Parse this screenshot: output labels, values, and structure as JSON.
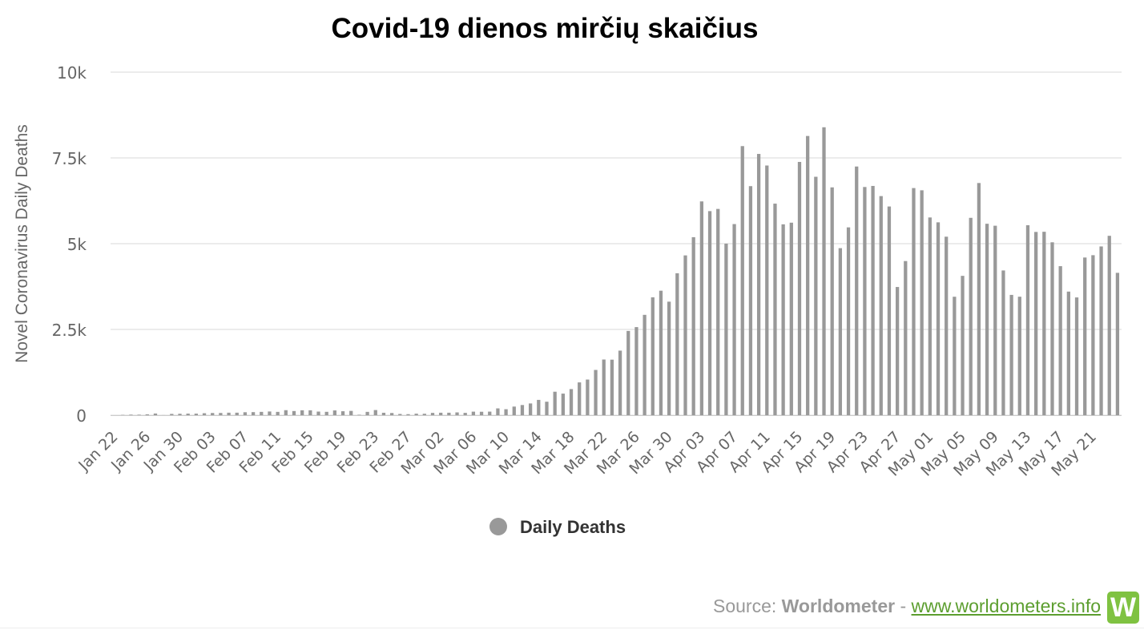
{
  "chart_data": {
    "type": "bar",
    "title": "Covid-19 dienos mirčių skaičius",
    "ylabel": "Novel Coronavirus Daily Deaths",
    "xlabel": "",
    "ylim": [
      0,
      10000
    ],
    "yticks": [
      {
        "value": 0,
        "label": "0"
      },
      {
        "value": 2500,
        "label": "2.5k"
      },
      {
        "value": 5000,
        "label": "5k"
      },
      {
        "value": 7500,
        "label": "7.5k"
      },
      {
        "value": 10000,
        "label": "10k"
      }
    ],
    "xtick_labels": [
      "Jan 22",
      "Jan 26",
      "Jan 30",
      "Feb 03",
      "Feb 07",
      "Feb 11",
      "Feb 15",
      "Feb 19",
      "Feb 23",
      "Feb 27",
      "Mar 02",
      "Mar 06",
      "Mar 10",
      "Mar 14",
      "Mar 18",
      "Mar 22",
      "Mar 26",
      "Mar 30",
      "Apr 03",
      "Apr 07",
      "Apr 11",
      "Apr 15",
      "Apr 19",
      "Apr 23",
      "Apr 27",
      "May 01",
      "May 05",
      "May 09",
      "May 13",
      "May 17",
      "May 21"
    ],
    "grid": true,
    "legend_position": "bottom-center",
    "bar_color": "#999999",
    "categories": [
      "Jan 22",
      "Jan 23",
      "Jan 24",
      "Jan 25",
      "Jan 26",
      "Jan 27",
      "Jan 28",
      "Jan 29",
      "Jan 30",
      "Jan 31",
      "Feb 01",
      "Feb 02",
      "Feb 03",
      "Feb 04",
      "Feb 05",
      "Feb 06",
      "Feb 07",
      "Feb 08",
      "Feb 09",
      "Feb 10",
      "Feb 11",
      "Feb 12",
      "Feb 13",
      "Feb 14",
      "Feb 15",
      "Feb 16",
      "Feb 17",
      "Feb 18",
      "Feb 19",
      "Feb 20",
      "Feb 21",
      "Feb 22",
      "Feb 23",
      "Feb 24",
      "Feb 25",
      "Feb 26",
      "Feb 27",
      "Feb 28",
      "Feb 29",
      "Mar 01",
      "Mar 02",
      "Mar 03",
      "Mar 04",
      "Mar 05",
      "Mar 06",
      "Mar 07",
      "Mar 08",
      "Mar 09",
      "Mar 10",
      "Mar 11",
      "Mar 12",
      "Mar 13",
      "Mar 14",
      "Mar 15",
      "Mar 16",
      "Mar 17",
      "Mar 18",
      "Mar 19",
      "Mar 20",
      "Mar 21",
      "Mar 22",
      "Mar 23",
      "Mar 24",
      "Mar 25",
      "Mar 26",
      "Mar 27",
      "Mar 28",
      "Mar 29",
      "Mar 30",
      "Mar 31",
      "Apr 01",
      "Apr 02",
      "Apr 03",
      "Apr 04",
      "Apr 05",
      "Apr 06",
      "Apr 07",
      "Apr 08",
      "Apr 09",
      "Apr 10",
      "Apr 11",
      "Apr 12",
      "Apr 13",
      "Apr 14",
      "Apr 15",
      "Apr 16",
      "Apr 17",
      "Apr 18",
      "Apr 19",
      "Apr 20",
      "Apr 21",
      "Apr 22",
      "Apr 23",
      "Apr 24",
      "Apr 25",
      "Apr 26",
      "Apr 27",
      "Apr 28",
      "Apr 29",
      "Apr 30",
      "May 01",
      "May 02",
      "May 03",
      "May 04",
      "May 05",
      "May 06",
      "May 07",
      "May 08",
      "May 09",
      "May 10",
      "May 11",
      "May 12",
      "May 13",
      "May 14",
      "May 15",
      "May 16",
      "May 17",
      "May 18",
      "May 19",
      "May 20",
      "May 21",
      "May 22",
      "May 23",
      "May 24"
    ],
    "series": [
      {
        "name": "Daily Deaths",
        "color": "#999999",
        "values": [
          0,
          8,
          16,
          14,
          26,
          49,
          2,
          38,
          42,
          46,
          45,
          57,
          64,
          65,
          73,
          73,
          86,
          89,
          97,
          108,
          97,
          146,
          121,
          143,
          142,
          105,
          98,
          139,
          115,
          125,
          12,
          97,
          150,
          71,
          64,
          36,
          30,
          44,
          42,
          67,
          72,
          72,
          81,
          68,
          103,
          100,
          104,
          198,
          174,
          251,
          296,
          342,
          446,
          393,
          684,
          629,
          761,
          956,
          1039,
          1319,
          1623,
          1619,
          1882,
          2456,
          2568,
          2925,
          3436,
          3629,
          3309,
          4137,
          4658,
          5189,
          6232,
          5949,
          6013,
          5001,
          5571,
          7844,
          6677,
          7616,
          7278,
          6167,
          5564,
          5612,
          7383,
          8139,
          6950,
          8393,
          6641,
          4869,
          5475,
          7249,
          6652,
          6683,
          6387,
          6084,
          3737,
          4493,
          6621,
          6556,
          5764,
          5622,
          5203,
          3453,
          4062,
          5753,
          6768,
          5580,
          5523,
          4219,
          3507,
          3454,
          5537,
          5342,
          5347,
          5040,
          4344,
          3603,
          3433,
          4596,
          4664,
          4919,
          5229,
          4150
        ]
      }
    ]
  },
  "legend": {
    "label": "Daily Deaths"
  },
  "source": {
    "prefix": "Source: ",
    "brand": "Worldometer",
    "separator": " - ",
    "link_text": "www.worldometers.info",
    "logo_letter": "W"
  }
}
